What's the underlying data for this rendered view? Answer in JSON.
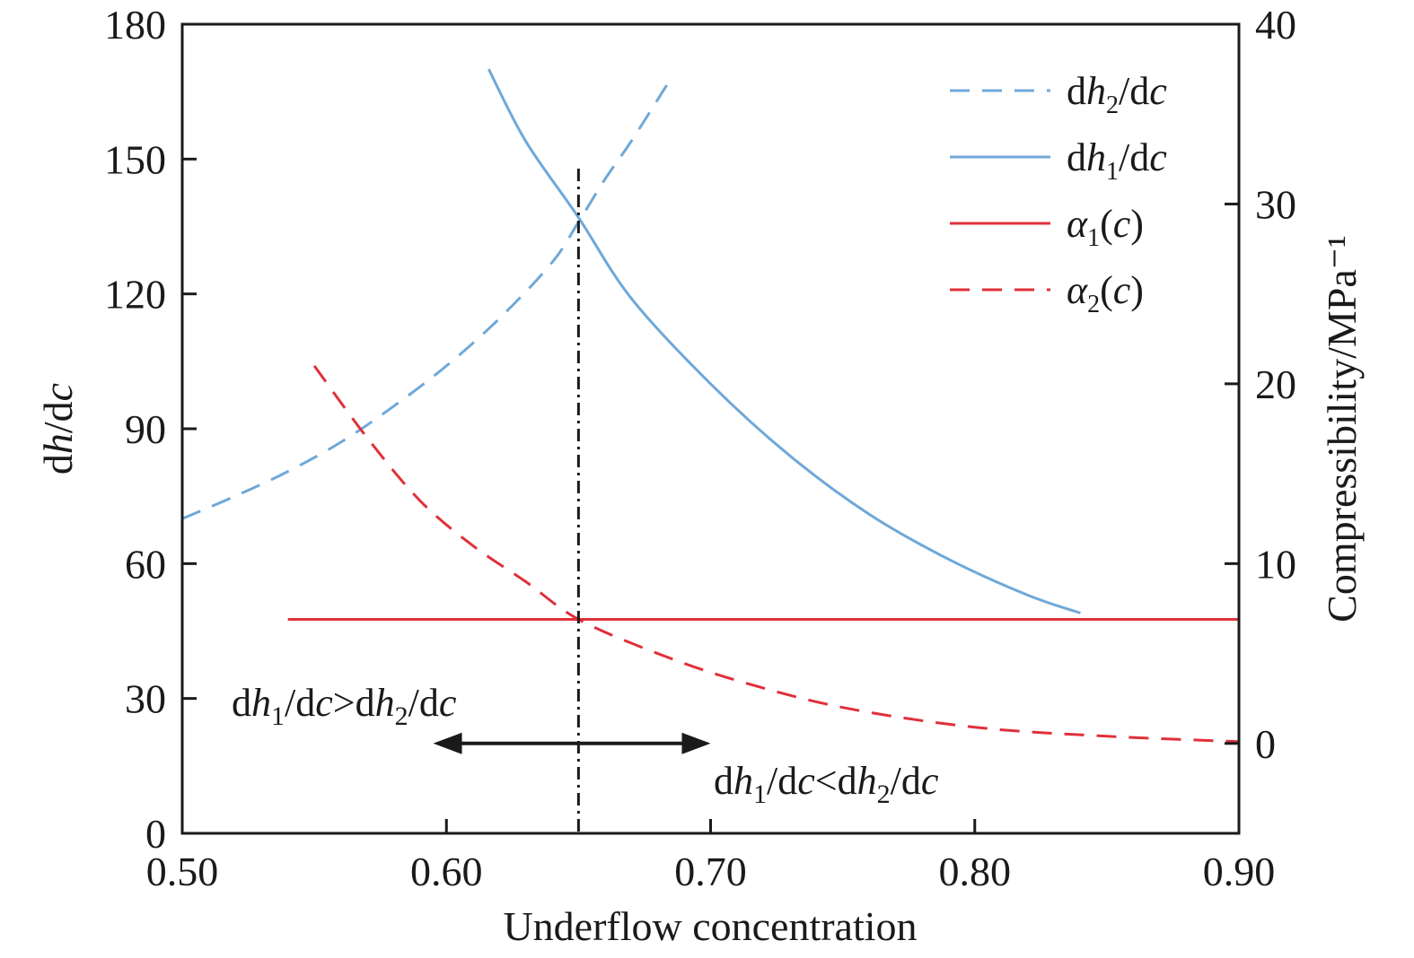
{
  "chart_data": {
    "type": "line",
    "xlabel": "Underflow concentration",
    "ylabel": "dh/dc",
    "y2label": "Compressibility/MPa⁻¹",
    "xlim": [
      0.5,
      0.9
    ],
    "ylim": [
      0,
      180
    ],
    "y2lim": [
      -5,
      40
    ],
    "x_ticks": [
      "0.50",
      "0.60",
      "0.70",
      "0.80",
      "0.90"
    ],
    "y_ticks": [
      "0",
      "30",
      "60",
      "90",
      "120",
      "150",
      "180"
    ],
    "y2_ticks": [
      "0",
      "10",
      "20",
      "30",
      "40"
    ],
    "colors": {
      "blue": "#6fa8d8",
      "red": "#e0303a",
      "black": "#1a1a1a"
    },
    "grid": false,
    "legend_position": "top-right",
    "series": [
      {
        "name": "dh2/dc",
        "axis": "left",
        "style": "dashed",
        "color": "#6fa8d8",
        "x": [
          0.5,
          0.52,
          0.54,
          0.56,
          0.58,
          0.6,
          0.62,
          0.64,
          0.65,
          0.66,
          0.67,
          0.684
        ],
        "y": [
          70,
          75,
          80.5,
          87,
          95,
          104,
          114.5,
          127,
          136,
          145.5,
          154,
          167
        ]
      },
      {
        "name": "dh1/dc",
        "axis": "left",
        "style": "solid",
        "color": "#6fa8d8",
        "x": [
          0.616,
          0.63,
          0.65,
          0.67,
          0.7,
          0.73,
          0.76,
          0.79,
          0.82,
          0.84
        ],
        "y": [
          170,
          154,
          137,
          119,
          100,
          84,
          71,
          61,
          53,
          49
        ]
      },
      {
        "name": "α1(c)",
        "axis": "right",
        "style": "solid",
        "color": "#e0303a",
        "x": [
          0.54,
          0.9
        ],
        "y": [
          6.9,
          6.9
        ]
      },
      {
        "name": "α2(c)",
        "axis": "right",
        "style": "dashed",
        "color": "#e0303a",
        "x": [
          0.55,
          0.57,
          0.59,
          0.61,
          0.63,
          0.65,
          0.68,
          0.71,
          0.75,
          0.8,
          0.85,
          0.9
        ],
        "y": [
          21,
          17,
          13.5,
          11,
          9,
          6.9,
          5.0,
          3.5,
          2.0,
          0.9,
          0.4,
          0.1
        ]
      }
    ],
    "legend": [
      {
        "main": "d",
        "ital": "h",
        "sub": "2",
        "tail": "/d",
        "tailital": "c"
      },
      {
        "main": "d",
        "ital": "h",
        "sub": "1",
        "tail": "/d",
        "tailital": "c"
      },
      {
        "main": "",
        "ital": "α",
        "sub": "1",
        "tail": "(",
        "tailital": "c",
        "end": ")"
      },
      {
        "main": "",
        "ital": "α",
        "sub": "2",
        "tail": "(",
        "tailital": "c",
        "end": ")"
      }
    ],
    "annotations": {
      "vline_x": 0.65,
      "arrow_from": 0.595,
      "arrow_to": 0.7,
      "arrow_y": 20,
      "left_text": "dh1/dc>dh2/dc",
      "right_text": "dh1/dc<dh2/dc"
    }
  }
}
